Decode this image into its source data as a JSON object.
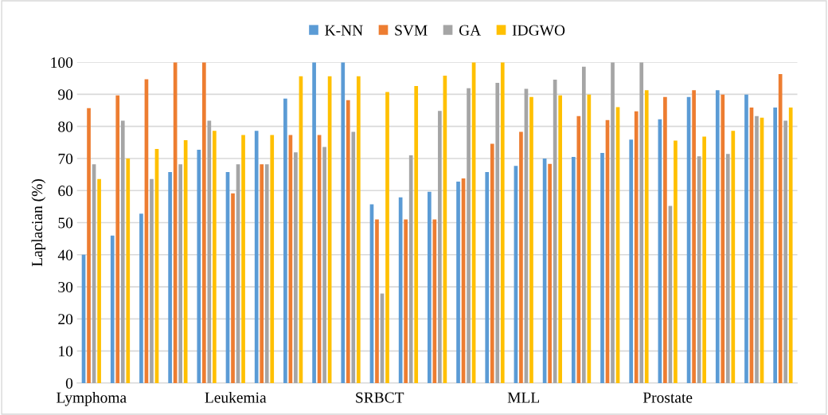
{
  "chart_data": {
    "type": "bar",
    "ylabel": "Laplacian (%)",
    "categories": [
      "Lymphoma",
      null,
      null,
      null,
      null,
      "Leukemia",
      null,
      null,
      null,
      null,
      "SRBCT",
      null,
      null,
      null,
      null,
      "MLL",
      null,
      null,
      null,
      null,
      "Prostate",
      null,
      null,
      null,
      null
    ],
    "series": [
      {
        "name": "K-NN",
        "color": "#5b9bd5",
        "values": [
          40,
          46,
          52.8,
          65.8,
          72.7,
          65.8,
          78.6,
          88.7,
          100,
          100,
          55.7,
          57.9,
          59.6,
          62.8,
          65.8,
          67.7,
          70,
          70.5,
          71.7,
          75.9,
          82.2,
          89.2,
          91.3,
          89.9,
          85.9
        ]
      },
      {
        "name": "SVM",
        "color": "#ed7d31",
        "values": [
          85.7,
          89.7,
          94.7,
          100,
          100,
          59.1,
          68.2,
          77.3,
          77.3,
          88.2,
          51,
          51,
          51,
          63.8,
          74.6,
          78.3,
          68.3,
          83.2,
          82,
          84.7,
          89.2,
          91.3,
          89.9,
          85.9,
          96.3
        ]
      },
      {
        "name": "GA",
        "color": "#a5a5a5",
        "values": [
          68.2,
          81.8,
          63.6,
          68.2,
          81.8,
          68.2,
          68.2,
          71.9,
          73.6,
          78.3,
          27.9,
          71,
          84.8,
          91.9,
          93.6,
          91.7,
          94.6,
          98.6,
          100,
          100,
          55.2,
          70.7,
          71.4,
          83.2,
          81.8
        ]
      },
      {
        "name": "IDGWO",
        "color": "#ffc000",
        "values": [
          63.6,
          70,
          73,
          75.7,
          78.6,
          77.3,
          77.3,
          95.6,
          95.6,
          95.6,
          90.7,
          92.6,
          95.8,
          100,
          100,
          89.2,
          89.7,
          89.9,
          86,
          91.3,
          75.6,
          76.8,
          78.6,
          82.7,
          85.9
        ]
      }
    ],
    "ylim": [
      0,
      100
    ],
    "yticks": [
      0,
      10,
      20,
      30,
      40,
      50,
      60,
      70,
      80,
      90,
      100
    ],
    "grid": "y",
    "legend": "top"
  }
}
